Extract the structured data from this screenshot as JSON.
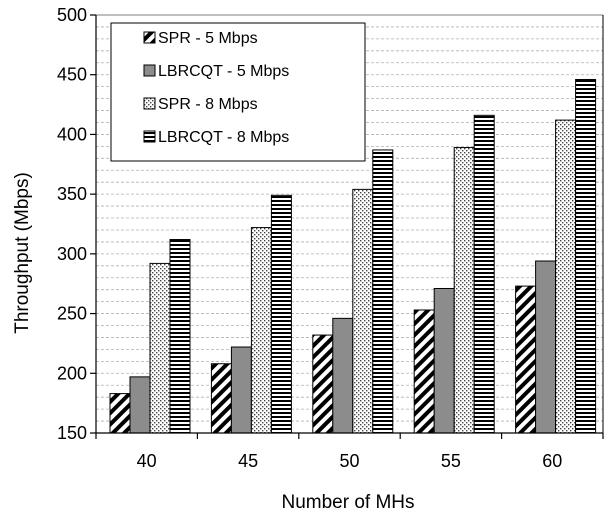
{
  "chart_data": {
    "type": "bar",
    "xlabel": "Number of MHs",
    "ylabel": "Throughput (Mbps)",
    "categories": [
      "40",
      "45",
      "50",
      "55",
      "60"
    ],
    "ylim": [
      150,
      500
    ],
    "yticks": [
      "150",
      "200",
      "250",
      "300",
      "350",
      "400",
      "450",
      "500"
    ],
    "grid": "horizontal dashed",
    "legend_position": "top-left",
    "series": [
      {
        "name": "SPR - 5 Mbps",
        "pattern": "diagonal-hatch",
        "values": [
          183,
          208,
          232,
          253,
          273
        ]
      },
      {
        "name": "LBRCQT - 5 Mbps",
        "pattern": "solid-gray",
        "values": [
          197,
          222,
          246,
          271,
          294
        ]
      },
      {
        "name": "SPR - 8 Mbps",
        "pattern": "dots",
        "values": [
          292,
          322,
          354,
          389,
          412
        ]
      },
      {
        "name": "LBRCQT - 8 Mbps",
        "pattern": "horizontal-lines",
        "values": [
          312,
          349,
          387,
          416,
          446
        ]
      }
    ]
  }
}
